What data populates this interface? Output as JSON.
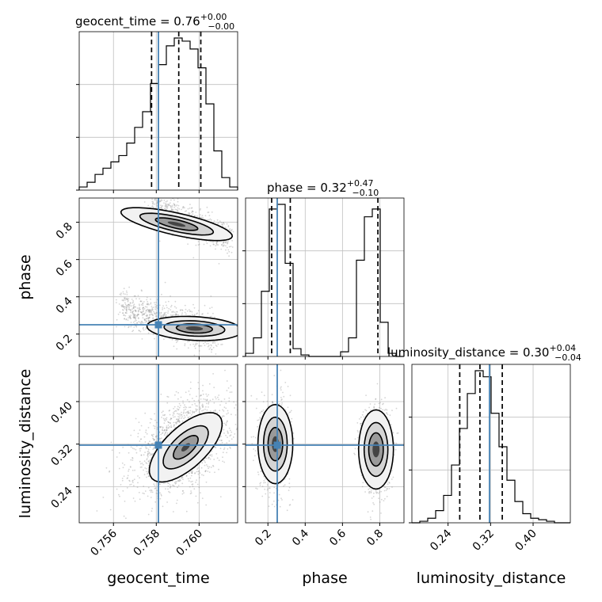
{
  "chart_data": {
    "type": "corner",
    "parameters": [
      "geocent_time",
      "phase",
      "luminosity_distance"
    ],
    "grid": true,
    "colors": {
      "truth": "#4682b4",
      "histogram": "#000000",
      "quantile": "#000000",
      "grid": "#c0c0c0"
    },
    "truth": {
      "geocent_time": 0.7581,
      "phase": 0.25,
      "luminosity_distance": 0.318
    },
    "titles": [
      {
        "param": "geocent_time",
        "text": "geocent_time = 0.76",
        "sup": "+0.00",
        "sub": "−0.00"
      },
      {
        "param": "phase",
        "text": "phase = 0.32",
        "sup": "+0.47",
        "sub": "−0.10"
      },
      {
        "param": "luminosity_distance",
        "text": "luminosity_distance = 0.30",
        "sup": "+0.04",
        "sub": "−0.04"
      }
    ],
    "axes": {
      "geocent_time": {
        "range": [
          0.7544,
          0.7618
        ],
        "ticks": [
          0.756,
          0.758,
          0.76
        ],
        "tick_labels": [
          "0.756",
          "0.758",
          "0.760"
        ],
        "label": "geocent_time"
      },
      "phase": {
        "range": [
          0.08,
          0.93
        ],
        "ticks": [
          0.2,
          0.4,
          0.6,
          0.8
        ],
        "tick_labels": [
          "0.2",
          "0.4",
          "0.6",
          "0.8"
        ],
        "label": "phase"
      },
      "luminosity_distance": {
        "range": [
          0.172,
          0.47
        ],
        "ticks": [
          0.24,
          0.32,
          0.4
        ],
        "tick_labels": [
          "0.24",
          "0.32",
          "0.40"
        ],
        "label": "luminosity_distance"
      }
    },
    "hist_geocent_time": {
      "edges": [
        0.7544,
        0.75477,
        0.75514,
        0.75551,
        0.75588,
        0.75625,
        0.75662,
        0.75699,
        0.75736,
        0.75773,
        0.7581,
        0.75847,
        0.75884,
        0.75921,
        0.75958,
        0.75995,
        0.76032,
        0.76069,
        0.76106,
        0.76143,
        0.7618
      ],
      "counts": [
        2,
        5,
        10,
        14,
        18,
        22,
        30,
        40,
        50,
        68,
        80,
        92,
        97,
        95,
        90,
        78,
        55,
        25,
        8,
        2
      ]
    },
    "hist_phase": {
      "edges": [
        0.08,
        0.1225,
        0.165,
        0.2075,
        0.25,
        0.2925,
        0.335,
        0.3775,
        0.42,
        0.4625,
        0.505,
        0.5475,
        0.59,
        0.6325,
        0.675,
        0.7175,
        0.76,
        0.8025,
        0.845,
        0.8875,
        0.93
      ],
      "counts": [
        2,
        12,
        42,
        95,
        98,
        60,
        5,
        1,
        0,
        0,
        0,
        0,
        3,
        12,
        62,
        90,
        95,
        22,
        2,
        0
      ]
    },
    "hist_luminosity_distance": {
      "edges": [
        0.172,
        0.1869,
        0.2018,
        0.2167,
        0.2316,
        0.2465,
        0.2614,
        0.2763,
        0.2912,
        0.3061,
        0.321,
        0.3359,
        0.3508,
        0.3657,
        0.3806,
        0.3955,
        0.4104,
        0.4253,
        0.4402,
        0.4551,
        0.47
      ],
      "counts": [
        0,
        1,
        3,
        8,
        18,
        38,
        62,
        85,
        100,
        96,
        72,
        50,
        28,
        14,
        6,
        3,
        2,
        1,
        0,
        0
      ]
    },
    "quantiles": {
      "geocent_time": [
        0.75778,
        0.75905,
        0.76008
      ],
      "phase": [
        0.22,
        0.32,
        0.79
      ],
      "luminosity_distance": [
        0.262,
        0.3,
        0.342
      ]
    },
    "samples_2d": {
      "phase_vs_geocent_time": {
        "clusters": [
          {
            "x": [
              0.7578,
              0.7614
            ],
            "y_start": 0.88,
            "y_end": 0.71,
            "y_spread": 0.04,
            "mode": [
              0.75895,
              0.79
            ]
          },
          {
            "x": [
              0.7563,
              0.7609
            ],
            "y_start": 0.34,
            "y_end": 0.2,
            "y_spread": 0.05,
            "mode": [
              0.75978,
              0.23
            ]
          }
        ]
      },
      "luminosity_distance_vs_geocent_time": {
        "mode": [
          0.75945,
          0.308
        ],
        "mean": [
          0.7592,
          0.318
        ],
        "std": [
          0.0011,
          0.042
        ],
        "correlation": 0.45
      },
      "luminosity_distance_vs_phase": {
        "modes": [
          [
            0.24,
            0.32
          ],
          [
            0.78,
            0.31
          ]
        ],
        "phase_std": 0.04,
        "distance_std": 0.042
      }
    }
  }
}
